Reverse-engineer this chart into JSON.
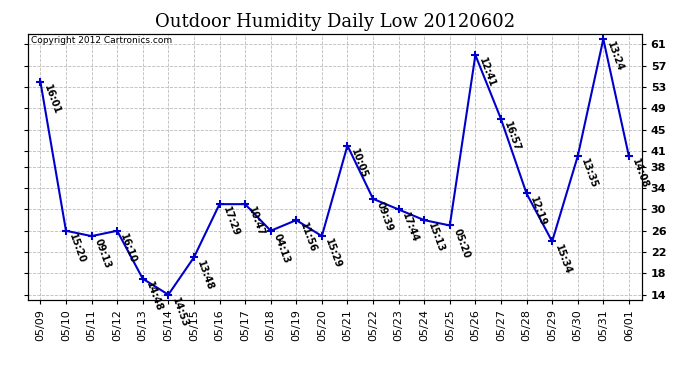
{
  "title": "Outdoor Humidity Daily Low 20120602",
  "copyright": "Copyright 2012 Cartronics.com",
  "dates": [
    "05/09",
    "05/10",
    "05/11",
    "05/12",
    "05/13",
    "05/14",
    "05/15",
    "05/16",
    "05/17",
    "05/18",
    "05/19",
    "05/20",
    "05/21",
    "05/22",
    "05/23",
    "05/24",
    "05/25",
    "05/26",
    "05/27",
    "05/28",
    "05/29",
    "05/30",
    "05/31",
    "06/01"
  ],
  "values": [
    54,
    26,
    25,
    26,
    17,
    14,
    21,
    31,
    31,
    26,
    28,
    25,
    42,
    32,
    30,
    28,
    27,
    59,
    47,
    33,
    24,
    40,
    62,
    40
  ],
  "time_labels": [
    "16:01",
    "15:20",
    "09:13",
    "16:10",
    "14:48",
    "14:53",
    "13:48",
    "17:29",
    "10:47",
    "04:13",
    "11:56",
    "15:29",
    "10:05",
    "09:39",
    "17:44",
    "15:13",
    "05:20",
    "12:41",
    "16:57",
    "12:19",
    "15:34",
    "13:35",
    "13:24",
    "14:08"
  ],
  "line_color": "#0000cc",
  "marker_color": "#0000cc",
  "bg_color": "#ffffff",
  "grid_color": "#bbbbbb",
  "ylim": [
    13,
    63
  ],
  "yticks": [
    14,
    18,
    22,
    26,
    30,
    34,
    38,
    41,
    45,
    49,
    53,
    57,
    61
  ],
  "title_fontsize": 13,
  "annot_fontsize": 7,
  "tick_fontsize": 8
}
